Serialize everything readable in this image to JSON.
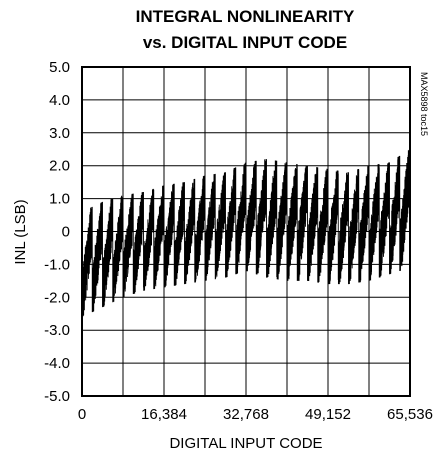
{
  "chart_data": {
    "type": "line",
    "title_line1": "INTEGRAL NONLINEARITY",
    "title_line2": "vs. DIGITAL INPUT CODE",
    "xlabel": "DIGITAL INPUT CODE",
    "ylabel": "INL (LSB)",
    "figure_id": "MAX5898 toc15",
    "xlim": [
      0,
      65536
    ],
    "ylim": [
      -5.0,
      5.0
    ],
    "x_ticks": [
      0,
      16384,
      32768,
      49152,
      65536
    ],
    "x_tick_labels": [
      "0",
      "16,384",
      "32,768",
      "49,152",
      "65,536"
    ],
    "y_ticks": [
      5.0,
      4.0,
      3.0,
      2.0,
      1.0,
      0,
      -1.0,
      -2.0,
      -3.0,
      -4.0,
      -5.0
    ],
    "y_tick_labels": [
      "5.0",
      "4.0",
      "3.0",
      "2.0",
      "1.0",
      "0",
      "-1.0",
      "-2.0",
      "-3.0",
      "-4.0",
      "-5.0"
    ],
    "grid": true,
    "x_grid_divisions": 8,
    "y_grid_divisions": 10,
    "series_color": "#000000",
    "envelope": {
      "x": [
        0,
        4096,
        8192,
        12288,
        16384,
        20480,
        24576,
        28672,
        32768,
        36864,
        40960,
        45056,
        49152,
        53248,
        57344,
        61440,
        65536
      ],
      "y_max": [
        0.6,
        0.9,
        1.1,
        1.2,
        1.4,
        1.5,
        1.7,
        1.8,
        2.1,
        2.2,
        2.1,
        2.0,
        1.9,
        1.8,
        2.0,
        2.1,
        2.5
      ],
      "y_min": [
        -2.6,
        -2.3,
        -2.0,
        -1.8,
        -1.7,
        -1.6,
        -1.5,
        -1.4,
        -1.2,
        -1.4,
        -1.5,
        -1.5,
        -1.6,
        -1.6,
        -1.5,
        -1.3,
        -1.1
      ]
    },
    "sawtooth_period_codes": 2048
  }
}
